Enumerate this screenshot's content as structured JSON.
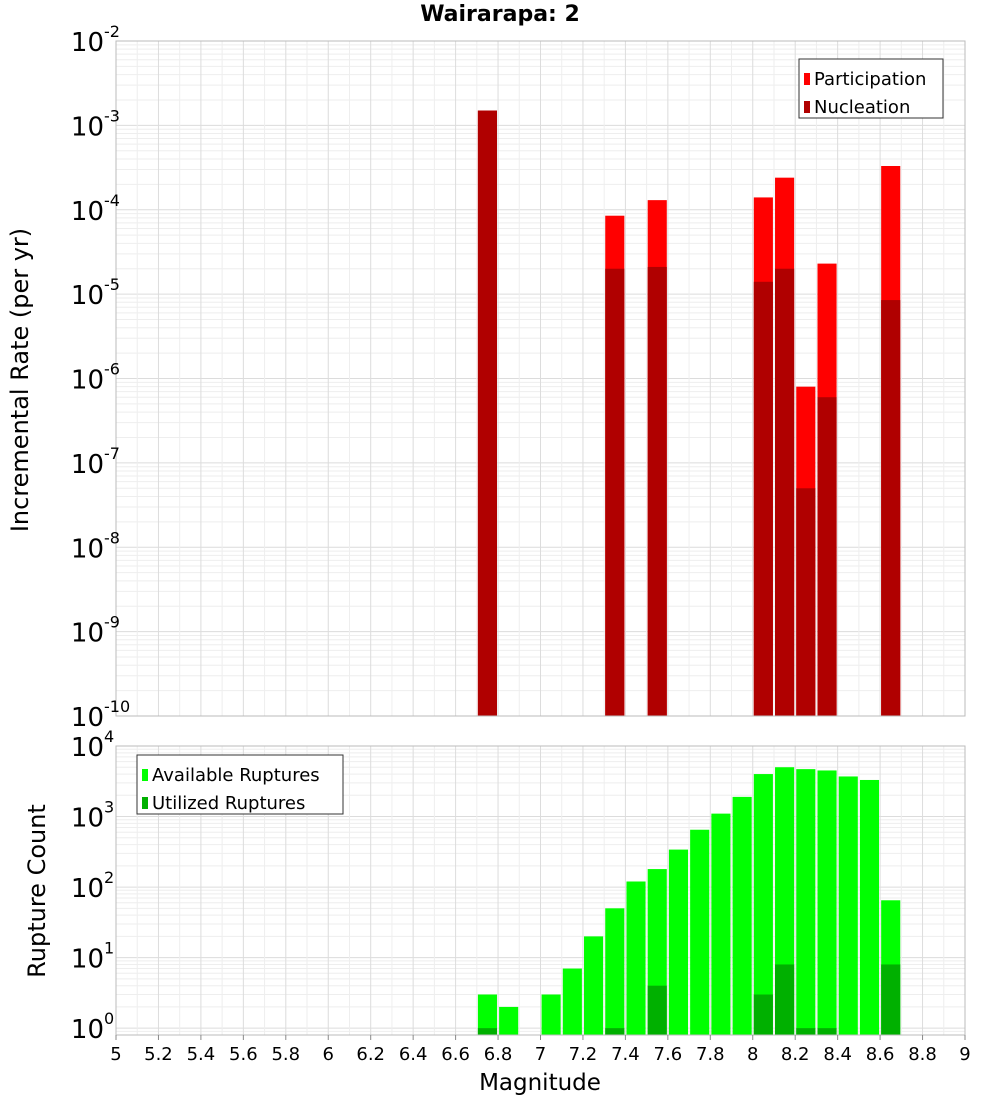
{
  "title": "Wairarapa: 2",
  "colors": {
    "participation": "#ff0000",
    "nucleation": "#b00000",
    "available": "#00ff00",
    "utilized": "#00b000",
    "grid_major": "#dcdcdc",
    "grid_minor": "#eeeeee",
    "frame": "#bbbbbb"
  },
  "chart_data": [
    {
      "type": "bar",
      "panel": "top",
      "ylabel": "Incremental Rate (per yr)",
      "yscale": "log",
      "ylim": [
        1e-10,
        0.01
      ],
      "xlim": [
        5,
        9
      ],
      "grid": true,
      "legend_position": "top-right",
      "y_tick_exponents": [
        "-10",
        "-9",
        "-8",
        "-7",
        "-6",
        "-5",
        "-4",
        "-3",
        "-2"
      ],
      "y_tick_base": "10",
      "series": [
        {
          "name": "Participation",
          "x": [
            6.75,
            7.35,
            7.55,
            8.05,
            8.15,
            8.25,
            8.35,
            8.65
          ],
          "values": [
            0.0015,
            8.5e-05,
            0.00013,
            0.00014,
            0.00024,
            8e-07,
            2.3e-05,
            0.00033
          ]
        },
        {
          "name": "Nucleation",
          "x": [
            6.75,
            7.35,
            7.55,
            8.05,
            8.15,
            8.25,
            8.35,
            8.65
          ],
          "values": [
            0.0015,
            2e-05,
            2.1e-05,
            1.4e-05,
            2e-05,
            5e-08,
            6e-07,
            8.5e-06
          ]
        }
      ]
    },
    {
      "type": "bar",
      "panel": "bottom",
      "xlabel": "Magnitude",
      "ylabel": "Rupture Count",
      "yscale": "log",
      "ylim": [
        0.8,
        10000
      ],
      "xlim": [
        5,
        9
      ],
      "grid": true,
      "legend_position": "top-left",
      "y_tick_exponents": [
        "0",
        "1",
        "2",
        "3",
        "4"
      ],
      "y_tick_base": "10",
      "x_ticks": [
        "5",
        "5.2",
        "5.4",
        "5.6",
        "5.8",
        "6",
        "6.2",
        "6.4",
        "6.6",
        "6.8",
        "7",
        "7.2",
        "7.4",
        "7.6",
        "7.8",
        "8",
        "8.2",
        "8.4",
        "8.6",
        "8.8",
        "9"
      ],
      "series": [
        {
          "name": "Available Ruptures",
          "x": [
            6.75,
            6.85,
            7.05,
            7.15,
            7.25,
            7.35,
            7.45,
            7.55,
            7.65,
            7.75,
            7.85,
            7.95,
            8.05,
            8.15,
            8.25,
            8.35,
            8.45,
            8.55,
            8.65
          ],
          "values": [
            3,
            2,
            3,
            7,
            20,
            50,
            120,
            180,
            340,
            650,
            1100,
            1900,
            4000,
            5000,
            4700,
            4500,
            3700,
            3300,
            65
          ]
        },
        {
          "name": "Utilized Ruptures",
          "x": [
            6.75,
            7.35,
            7.55,
            8.05,
            8.15,
            8.25,
            8.35,
            8.65
          ],
          "values": [
            1,
            1,
            4,
            3,
            8,
            1,
            1,
            8
          ]
        }
      ]
    }
  ]
}
